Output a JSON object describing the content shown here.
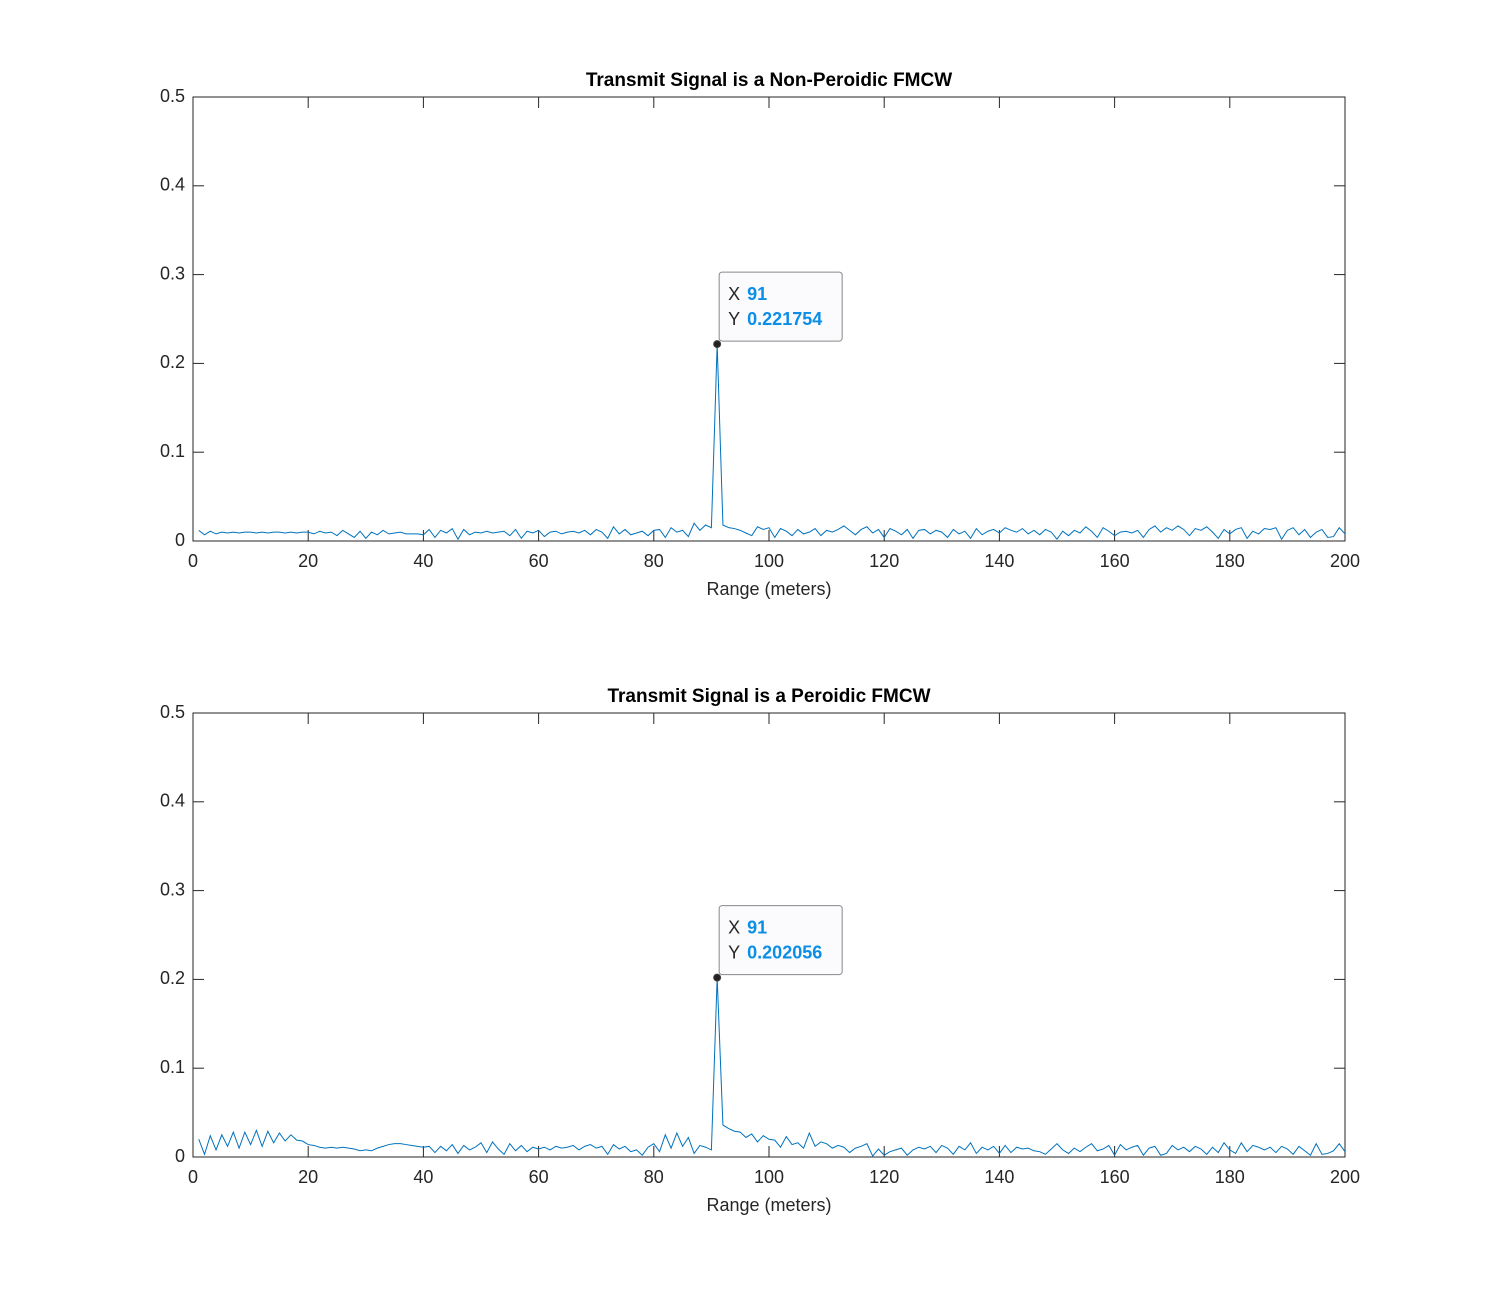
{
  "chart_data": [
    {
      "type": "line",
      "title": "Transmit Signal is a Non-Peroidic FMCW",
      "xlabel": "Range (meters)",
      "color": "#0072bd",
      "xlim": [
        0,
        200
      ],
      "ylim": [
        0,
        0.5
      ],
      "xticks": [
        0,
        20,
        40,
        60,
        80,
        100,
        120,
        140,
        160,
        180,
        200
      ],
      "yticks": [
        0,
        0.1,
        0.2,
        0.3,
        0.4,
        0.5
      ],
      "x": [
        1,
        2,
        3,
        4,
        5,
        6,
        7,
        8,
        9,
        10,
        11,
        12,
        13,
        14,
        15,
        16,
        17,
        18,
        19,
        20,
        21,
        22,
        23,
        24,
        25,
        26,
        27,
        28,
        29,
        30,
        31,
        32,
        33,
        34,
        35,
        36,
        37,
        38,
        39,
        40,
        41,
        42,
        43,
        44,
        45,
        46,
        47,
        48,
        49,
        50,
        51,
        52,
        53,
        54,
        55,
        56,
        57,
        58,
        59,
        60,
        61,
        62,
        63,
        64,
        65,
        66,
        67,
        68,
        69,
        70,
        71,
        72,
        73,
        74,
        75,
        76,
        77,
        78,
        79,
        80,
        81,
        82,
        83,
        84,
        85,
        86,
        87,
        88,
        89,
        90,
        91,
        92,
        93,
        94,
        95,
        96,
        97,
        98,
        99,
        100,
        101,
        102,
        103,
        104,
        105,
        106,
        107,
        108,
        109,
        110,
        111,
        112,
        113,
        114,
        115,
        116,
        117,
        118,
        119,
        120,
        121,
        122,
        123,
        124,
        125,
        126,
        127,
        128,
        129,
        130,
        131,
        132,
        133,
        134,
        135,
        136,
        137,
        138,
        139,
        140,
        141,
        142,
        143,
        144,
        145,
        146,
        147,
        148,
        149,
        150,
        151,
        152,
        153,
        154,
        155,
        156,
        157,
        158,
        159,
        160,
        161,
        162,
        163,
        164,
        165,
        166,
        167,
        168,
        169,
        170,
        171,
        172,
        173,
        174,
        175,
        176,
        177,
        178,
        179,
        180,
        181,
        182,
        183,
        184,
        185,
        186,
        187,
        188,
        189,
        190,
        191,
        192,
        193,
        194,
        195,
        196,
        197,
        198,
        199,
        200
      ],
      "values": [
        0.012,
        0.007,
        0.011,
        0.008,
        0.01,
        0.009,
        0.01,
        0.009,
        0.01,
        0.01,
        0.009,
        0.01,
        0.009,
        0.01,
        0.01,
        0.009,
        0.01,
        0.009,
        0.01,
        0.01,
        0.008,
        0.011,
        0.009,
        0.01,
        0.006,
        0.012,
        0.008,
        0.004,
        0.011,
        0.003,
        0.01,
        0.007,
        0.012,
        0.008,
        0.009,
        0.01,
        0.008,
        0.008,
        0.008,
        0.007,
        0.013,
        0.004,
        0.012,
        0.009,
        0.014,
        0.002,
        0.013,
        0.007,
        0.01,
        0.009,
        0.011,
        0.009,
        0.01,
        0.011,
        0.006,
        0.013,
        0.003,
        0.011,
        0.009,
        0.012,
        0.005,
        0.01,
        0.011,
        0.008,
        0.01,
        0.011,
        0.009,
        0.012,
        0.007,
        0.013,
        0.01,
        0.003,
        0.016,
        0.008,
        0.013,
        0.007,
        0.009,
        0.011,
        0.006,
        0.012,
        0.013,
        0.004,
        0.015,
        0.01,
        0.012,
        0.005,
        0.02,
        0.012,
        0.018,
        0.015,
        0.221754,
        0.018,
        0.015,
        0.014,
        0.012,
        0.009,
        0.006,
        0.016,
        0.013,
        0.015,
        0.004,
        0.014,
        0.011,
        0.006,
        0.013,
        0.008,
        0.01,
        0.014,
        0.006,
        0.012,
        0.01,
        0.013,
        0.017,
        0.012,
        0.007,
        0.013,
        0.016,
        0.009,
        0.013,
        0.004,
        0.014,
        0.011,
        0.007,
        0.013,
        0.003,
        0.012,
        0.013,
        0.008,
        0.012,
        0.01,
        0.004,
        0.013,
        0.008,
        0.011,
        0.003,
        0.014,
        0.007,
        0.011,
        0.013,
        0.009,
        0.015,
        0.012,
        0.01,
        0.014,
        0.008,
        0.012,
        0.007,
        0.013,
        0.01,
        0.002,
        0.011,
        0.006,
        0.012,
        0.009,
        0.016,
        0.011,
        0.004,
        0.015,
        0.011,
        0.006,
        0.01,
        0.011,
        0.009,
        0.012,
        0.004,
        0.013,
        0.017,
        0.01,
        0.015,
        0.012,
        0.017,
        0.013,
        0.006,
        0.014,
        0.012,
        0.016,
        0.01,
        0.003,
        0.013,
        0.008,
        0.013,
        0.015,
        0.003,
        0.011,
        0.008,
        0.014,
        0.013,
        0.015,
        0.002,
        0.012,
        0.015,
        0.007,
        0.013,
        0.004,
        0.01,
        0.013,
        0.004,
        0.005,
        0.015,
        0.008
      ],
      "datatip": {
        "x_label": "X",
        "x": 91,
        "y_label": "Y",
        "y": 0.221754
      }
    },
    {
      "type": "line",
      "title": "Transmit Signal is a Peroidic FMCW",
      "xlabel": "Range (meters)",
      "color": "#0072bd",
      "xlim": [
        0,
        200
      ],
      "ylim": [
        0,
        0.5
      ],
      "xticks": [
        0,
        20,
        40,
        60,
        80,
        100,
        120,
        140,
        160,
        180,
        200
      ],
      "yticks": [
        0,
        0.1,
        0.2,
        0.3,
        0.4,
        0.5
      ],
      "x": [
        1,
        2,
        3,
        4,
        5,
        6,
        7,
        8,
        9,
        10,
        11,
        12,
        13,
        14,
        15,
        16,
        17,
        18,
        19,
        20,
        21,
        22,
        23,
        24,
        25,
        26,
        27,
        28,
        29,
        30,
        31,
        32,
        33,
        34,
        35,
        36,
        37,
        38,
        39,
        40,
        41,
        42,
        43,
        44,
        45,
        46,
        47,
        48,
        49,
        50,
        51,
        52,
        53,
        54,
        55,
        56,
        57,
        58,
        59,
        60,
        61,
        62,
        63,
        64,
        65,
        66,
        67,
        68,
        69,
        70,
        71,
        72,
        73,
        74,
        75,
        76,
        77,
        78,
        79,
        80,
        81,
        82,
        83,
        84,
        85,
        86,
        87,
        88,
        89,
        90,
        91,
        92,
        93,
        94,
        95,
        96,
        97,
        98,
        99,
        100,
        101,
        102,
        103,
        104,
        105,
        106,
        107,
        108,
        109,
        110,
        111,
        112,
        113,
        114,
        115,
        116,
        117,
        118,
        119,
        120,
        121,
        122,
        123,
        124,
        125,
        126,
        127,
        128,
        129,
        130,
        131,
        132,
        133,
        134,
        135,
        136,
        137,
        138,
        139,
        140,
        141,
        142,
        143,
        144,
        145,
        146,
        147,
        148,
        149,
        150,
        151,
        152,
        153,
        154,
        155,
        156,
        157,
        158,
        159,
        160,
        161,
        162,
        163,
        164,
        165,
        166,
        167,
        168,
        169,
        170,
        171,
        172,
        173,
        174,
        175,
        176,
        177,
        178,
        179,
        180,
        181,
        182,
        183,
        184,
        185,
        186,
        187,
        188,
        189,
        190,
        191,
        192,
        193,
        194,
        195,
        196,
        197,
        198,
        199,
        200
      ],
      "values": [
        0.02,
        0.003,
        0.024,
        0.008,
        0.025,
        0.012,
        0.028,
        0.01,
        0.028,
        0.014,
        0.03,
        0.012,
        0.029,
        0.016,
        0.027,
        0.018,
        0.025,
        0.019,
        0.018,
        0.014,
        0.013,
        0.011,
        0.01,
        0.011,
        0.01,
        0.011,
        0.01,
        0.009,
        0.007,
        0.008,
        0.007,
        0.01,
        0.012,
        0.014,
        0.015,
        0.015,
        0.014,
        0.013,
        0.012,
        0.011,
        0.012,
        0.005,
        0.012,
        0.007,
        0.014,
        0.004,
        0.013,
        0.008,
        0.011,
        0.016,
        0.005,
        0.017,
        0.009,
        0.003,
        0.015,
        0.007,
        0.013,
        0.006,
        0.011,
        0.009,
        0.011,
        0.008,
        0.012,
        0.01,
        0.011,
        0.013,
        0.008,
        0.012,
        0.014,
        0.01,
        0.012,
        0.003,
        0.014,
        0.009,
        0.012,
        0.006,
        0.008,
        0.002,
        0.011,
        0.015,
        0.006,
        0.025,
        0.01,
        0.027,
        0.012,
        0.022,
        0.004,
        0.013,
        0.011,
        0.008,
        0.202056,
        0.036,
        0.032,
        0.029,
        0.028,
        0.022,
        0.026,
        0.017,
        0.024,
        0.02,
        0.019,
        0.011,
        0.023,
        0.014,
        0.016,
        0.01,
        0.027,
        0.012,
        0.017,
        0.015,
        0.01,
        0.013,
        0.011,
        0.005,
        0.01,
        0.012,
        0.015,
        0.001,
        0.009,
        0.002,
        0.006,
        0.008,
        0.01,
        0.002,
        0.008,
        0.011,
        0.009,
        0.012,
        0.005,
        0.013,
        0.01,
        0.003,
        0.012,
        0.008,
        0.016,
        0.004,
        0.011,
        0.008,
        0.012,
        0.004,
        0.013,
        0.005,
        0.011,
        0.009,
        0.01,
        0.007,
        0.006,
        0.003,
        0.009,
        0.015,
        0.008,
        0.004,
        0.01,
        0.006,
        0.011,
        0.015,
        0.007,
        0.009,
        0.013,
        0.002,
        0.014,
        0.008,
        0.011,
        0.013,
        0.002,
        0.01,
        0.012,
        0.002,
        0.004,
        0.013,
        0.008,
        0.011,
        0.006,
        0.012,
        0.009,
        0.003,
        0.011,
        0.005,
        0.016,
        0.008,
        0.004,
        0.016,
        0.006,
        0.013,
        0.011,
        0.008,
        0.011,
        0.005,
        0.012,
        0.009,
        0.003,
        0.012,
        0.007,
        0.002,
        0.015,
        0.003,
        0.004,
        0.007,
        0.015,
        0.006
      ],
      "datatip": {
        "x_label": "X",
        "x": 91,
        "y_label": "Y",
        "y": 0.202056
      }
    }
  ]
}
